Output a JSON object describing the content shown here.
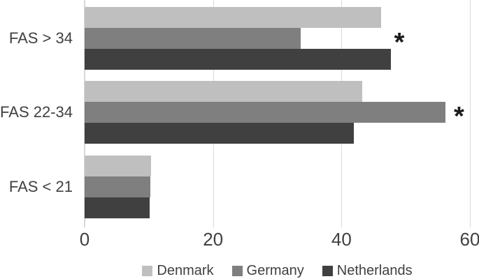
{
  "chart_data": {
    "type": "bar",
    "orientation": "horizontal",
    "title": "",
    "xlabel": "",
    "ylabel": "",
    "categories": [
      "FAS > 34",
      "FAS 22-34",
      "FAS < 21"
    ],
    "series": [
      {
        "name": "Denmark",
        "color": "#bfbfbf",
        "values": [
          46.2,
          43.2,
          10.3
        ]
      },
      {
        "name": "Germany",
        "color": "#7f7f7f",
        "values": [
          33.6,
          56.2,
          10.2
        ]
      },
      {
        "name": "Netherlands",
        "color": "#404040",
        "values": [
          47.7,
          41.9,
          10.1
        ]
      }
    ],
    "annotations": [
      {
        "text": "*",
        "category_index": 0,
        "x_value": 49.0
      },
      {
        "text": "*",
        "category_index": 1,
        "x_value": 58.3
      }
    ],
    "x_axis": {
      "min": 0,
      "max": 60,
      "ticks": [
        0,
        20,
        40,
        60
      ]
    },
    "grid": true,
    "legend_position": "bottom"
  },
  "colors": {
    "background": "#ffffff",
    "gridline": "#d9d9d9",
    "text": "#404040"
  }
}
